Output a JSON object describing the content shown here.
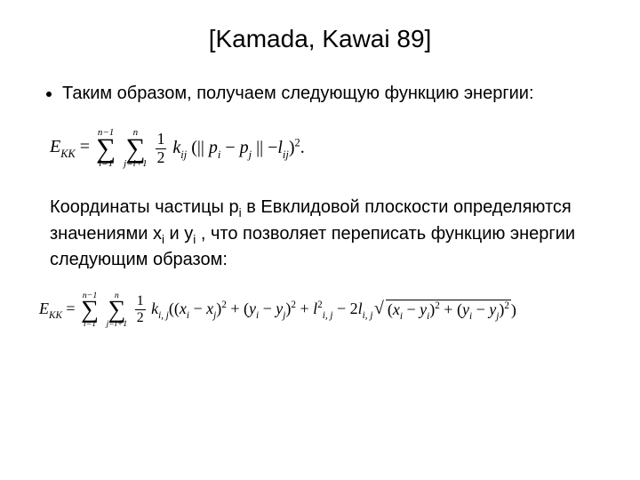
{
  "title": "[Kamada, Kawai 89]",
  "bullet": "Таким образом, получаем следующую функцию энергии:",
  "eq1": {
    "E": "E",
    "EKK": "KK",
    "sum1_top": "n−1",
    "sum1_bot": "i=1",
    "sum2_top": "n",
    "sum2_bot": "j=i+1",
    "half_num": "1",
    "half_den": "2",
    "k": "k",
    "kij": "ij",
    "lpar": "(",
    "bars1": "|| ",
    "p": "p",
    "pi": "i",
    "minus": " − ",
    "pj": "j",
    "bars2": " ||",
    "l": "l",
    "lij": "ij",
    "rpar": ")",
    "sq": "2",
    "dot": "."
  },
  "para": {
    "t1": "Координаты частицы p",
    "sub1": "i",
    "t2": " в Евклидовой плоскости определяются значениями x",
    "sub2": "i",
    "t3": " и y",
    "sub3": "i",
    "t4": " , что позволяет переписать функцию энергии следующим образом:"
  },
  "eq2": {
    "E": "E",
    "EKK": "KK",
    "sum1_top": "n−1",
    "sum1_bot": "i=1",
    "sum2_top": "n",
    "sum2_bot": "j=i+1",
    "half_num": "1",
    "half_den": "2",
    "k": "k",
    "kij": "i, j",
    "x": "x",
    "y": "y",
    "l": "l",
    "i": "i",
    "j": "j",
    "ij": "i, j",
    "two": "2",
    "minus": " − ",
    "plus": " + "
  }
}
